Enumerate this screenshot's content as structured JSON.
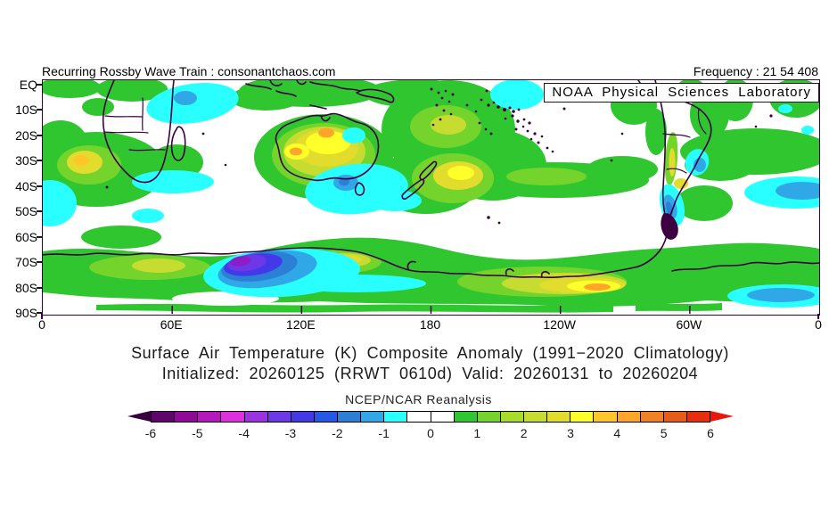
{
  "header": {
    "left": "Recurring Rossby Wave Train : consonantchaos.com",
    "right": "Frequency : 21 54 408"
  },
  "noaa_label": "NOAA Physical Sciences Laboratory",
  "titles": {
    "line1": "Surface Air Temperature (K) Composite Anomaly (1991−2020 Climatology)",
    "line2": "Initialized: 20260125 (RRWT 0610d) Valid: 20260131 to 20260204",
    "credit": "NCEP/NCAR Reanalysis"
  },
  "chart_data": {
    "type": "heatmap",
    "subtype": "filled-contour-anomaly-map",
    "title": "Surface Air Temperature (K) Composite Anomaly (1991−2020 Climatology)",
    "subtitle": "Initialized: 20260125 (RRWT 0610d) Valid: 20260131 to 20260204",
    "dataset": "NCEP/NCAR Reanalysis",
    "variable": "Surface Air Temperature anomaly",
    "units": "K",
    "domain": {
      "lat": [
        "EQ",
        "90S"
      ],
      "lon_span_deg": 360
    },
    "axes": {
      "lat_tick_labels": [
        "EQ",
        "10S",
        "20S",
        "30S",
        "40S",
        "50S",
        "60S",
        "70S",
        "80S",
        "90S"
      ],
      "lon_tick_labels": [
        "0",
        "60E",
        "120E",
        "180",
        "120W",
        "60W",
        "0"
      ]
    },
    "colorbar": {
      "tick_labels": [
        "-6",
        "-5",
        "-4",
        "-3",
        "-2",
        "-1",
        "0",
        "1",
        "2",
        "3",
        "4",
        "5",
        "6"
      ],
      "segment_step": 0.5,
      "left_arrow_color": "#38003e",
      "right_arrow_color": "#e8170a",
      "segment_colors": [
        "#62046e",
        "#8f0a96",
        "#b718bd",
        "#de30de",
        "#9c32e2",
        "#6d38e8",
        "#4439e8",
        "#2458e8",
        "#2b80d5",
        "#30a8e8",
        "#29ffff",
        "#ffffff",
        "#ffffff",
        "#2fc62f",
        "#74d42c",
        "#a9dc29",
        "#c6dc31",
        "#e2dc2d",
        "#ffff29",
        "#ffc62b",
        "#ffa629",
        "#f08223",
        "#e85c17",
        "#e82e0a"
      ]
    },
    "features": [
      {
        "region": "Southern Ocean ~90-120E, 70-80S",
        "anomaly_k": "-6 to -3",
        "note": "strong cold pool, violet core ringed by blue and cyan"
      },
      {
        "region": "Antarctica ~150W-90W, 75-85S",
        "anomaly_k": "+2 to +4.5",
        "note": "warm band with orange core"
      },
      {
        "region": "Australia interior",
        "anomaly_k": "+2 to +4.5",
        "note": "yellow interior with two orange spots"
      },
      {
        "region": "Ocean east of New Zealand",
        "anomaly_k": "+2 to +3.5",
        "note": "yellow blob"
      },
      {
        "region": "Southwestern Africa",
        "anomaly_k": "+2 to +4",
        "note": "yellow/orange core over Namibia-South Africa"
      },
      {
        "region": "Antarctica ~50-90E",
        "anomaly_k": "+1 to +2.5",
        "note": "yellow-green patch"
      },
      {
        "region": "Tropical Indian Ocean 0-15S",
        "anomaly_k": "-1 to -1.5",
        "note": "cyan patch with blue core"
      },
      {
        "region": "Tasman Sea / south of Australia",
        "anomaly_k": "-1 to -2",
        "note": "cyan with blue core near Tasmania"
      },
      {
        "region": "Southern South America coasts",
        "anomaly_k": "-1 to -2.5",
        "note": "cyan/blue strips near Patagonia"
      },
      {
        "region": "South Atlantic near 0 lon, 40-50S and 80S",
        "anomaly_k": "-1 to -2",
        "note": "cyan blobs with blue cores"
      },
      {
        "region": "Mid-latitude band 40-70S circumpolar",
        "anomaly_k": "+0.5 to +1.5",
        "note": "broad green band"
      },
      {
        "region": "South Pacific 10-30S",
        "anomaly_k": "0 to +1.5",
        "note": "green mass east of Australia"
      }
    ]
  },
  "colors": {
    "coastline": "#3c0040",
    "axis_frame": "#3c0040",
    "header_text": "#000000"
  }
}
